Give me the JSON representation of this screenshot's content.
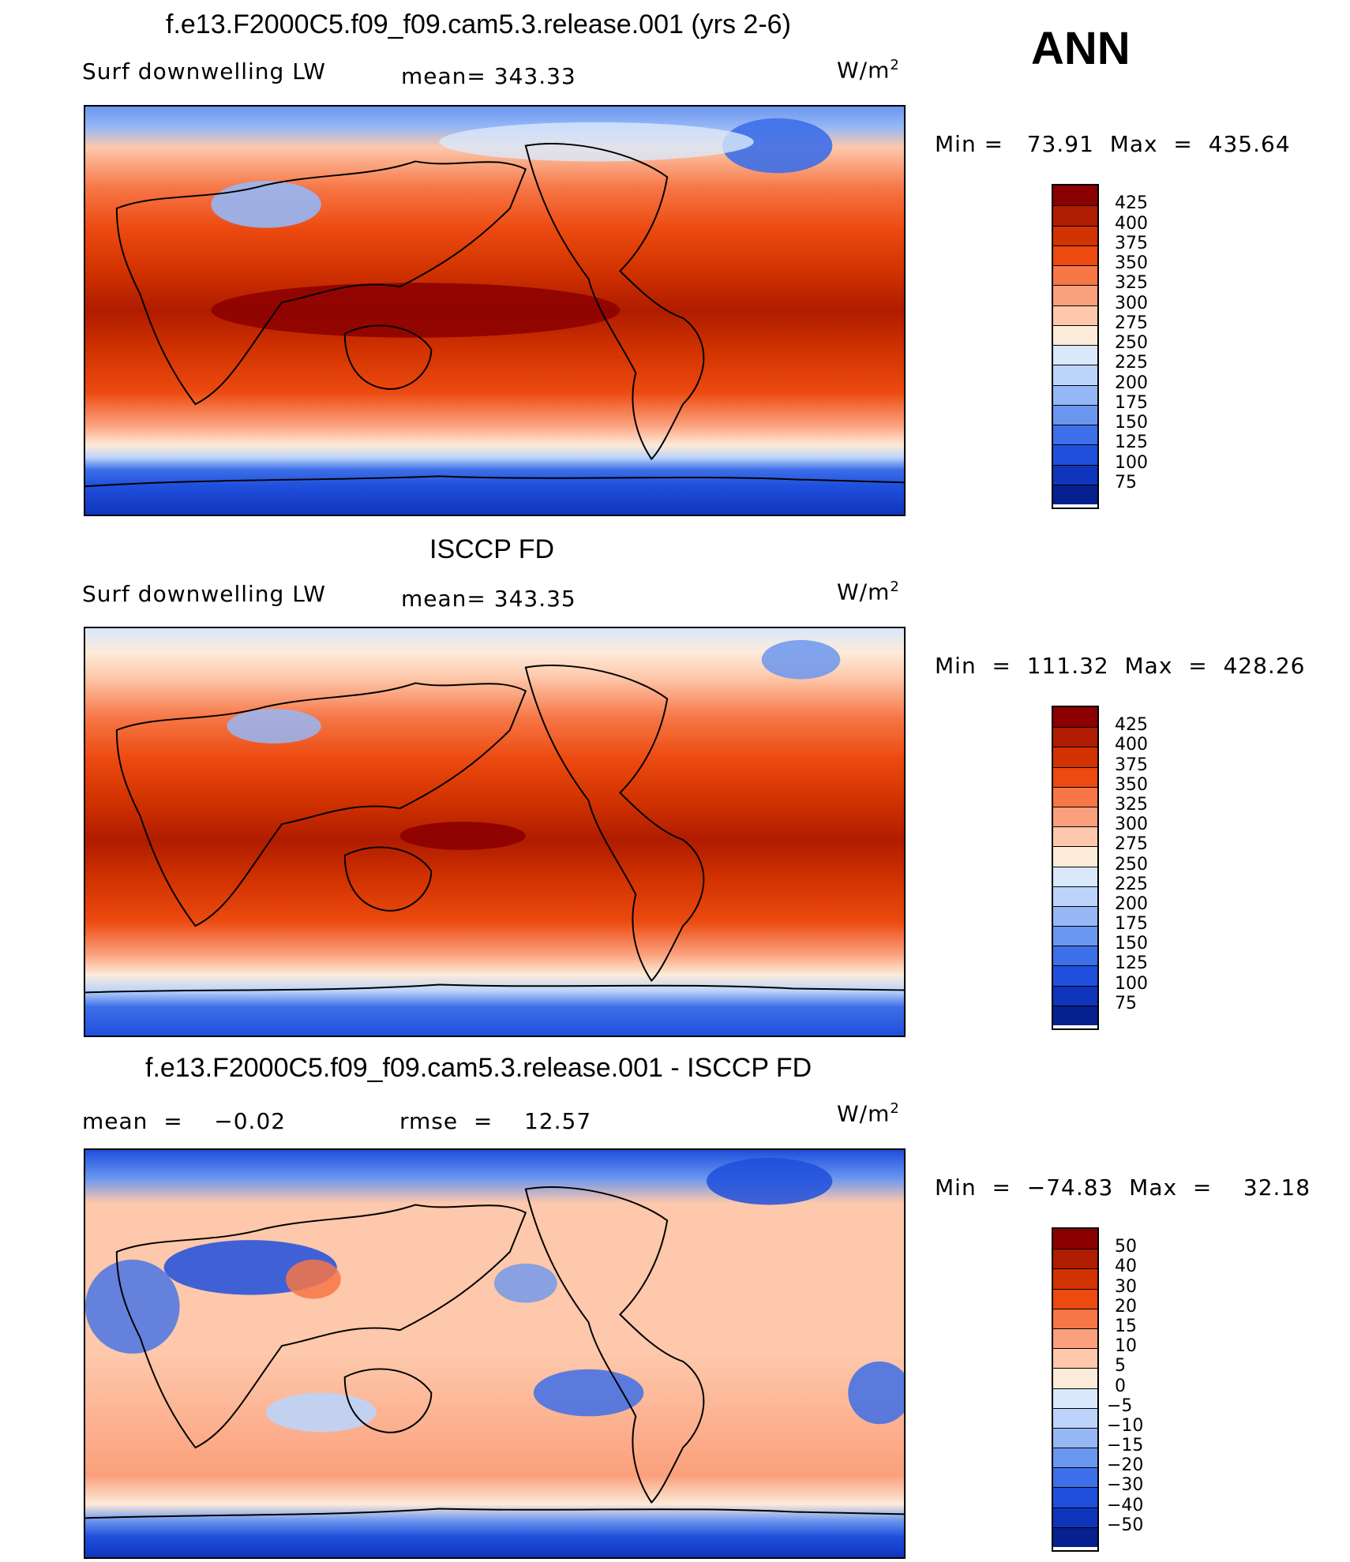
{
  "season": "ANN",
  "units_label": "W/m",
  "units_sup": "2",
  "panels": [
    {
      "title": "f.e13.F2000C5.f09_f09.cam5.3.release.001 (yrs 2-6)",
      "left_label": "Surf downwelling LW",
      "center_label": "mean= 343.33",
      "minmax": "Min =   73.91  Max  =  435.64",
      "legend": {
        "colors": [
          "#8b0000",
          "#b01c00",
          "#d23300",
          "#ec4a10",
          "#f67646",
          "#fba07c",
          "#fdc8ab",
          "#fdebd9",
          "#d9e8fb",
          "#bcd4fa",
          "#96b7f6",
          "#6b96ef",
          "#3d6fe8",
          "#1f4fdc",
          "#0f35bd",
          "#06208f"
        ],
        "labels": [
          "425",
          "400",
          "375",
          "350",
          "325",
          "300",
          "275",
          "250",
          "225",
          "200",
          "175",
          "150",
          "125",
          "100",
          "75"
        ]
      }
    },
    {
      "title": "ISCCP FD",
      "left_label": "Surf downwelling LW",
      "center_label": "mean= 343.35",
      "minmax": "Min  =  111.32  Max  =  428.26",
      "legend": {
        "colors": [
          "#8b0000",
          "#b01c00",
          "#d23300",
          "#ec4a10",
          "#f67646",
          "#fba07c",
          "#fdc8ab",
          "#fdebd9",
          "#d9e8fb",
          "#bcd4fa",
          "#96b7f6",
          "#6b96ef",
          "#3d6fe8",
          "#1f4fdc",
          "#0f35bd",
          "#06208f"
        ],
        "labels": [
          "425",
          "400",
          "375",
          "350",
          "325",
          "300",
          "275",
          "250",
          "225",
          "200",
          "175",
          "150",
          "125",
          "100",
          "75"
        ]
      }
    },
    {
      "title": "f.e13.F2000C5.f09_f09.cam5.3.release.001 - ISCCP FD",
      "left_label": "mean  =    −0.02",
      "center_label": "rmse  =    12.57",
      "minmax": "Min  =  −74.83  Max  =    32.18",
      "legend": {
        "colors": [
          "#8b0000",
          "#b01c00",
          "#d23300",
          "#ec4a10",
          "#f67646",
          "#fba07c",
          "#fdc8ab",
          "#fdebd9",
          "#d9e8fb",
          "#bcd4fa",
          "#96b7f6",
          "#6b96ef",
          "#3d6fe8",
          "#1f4fdc",
          "#0f35bd",
          "#06208f"
        ],
        "labels": [
          "50",
          "40",
          "30",
          "20",
          "15",
          "10",
          "5",
          "0",
          "−5",
          "−10",
          "−15",
          "−20",
          "−30",
          "−40",
          "−50"
        ]
      }
    }
  ]
}
